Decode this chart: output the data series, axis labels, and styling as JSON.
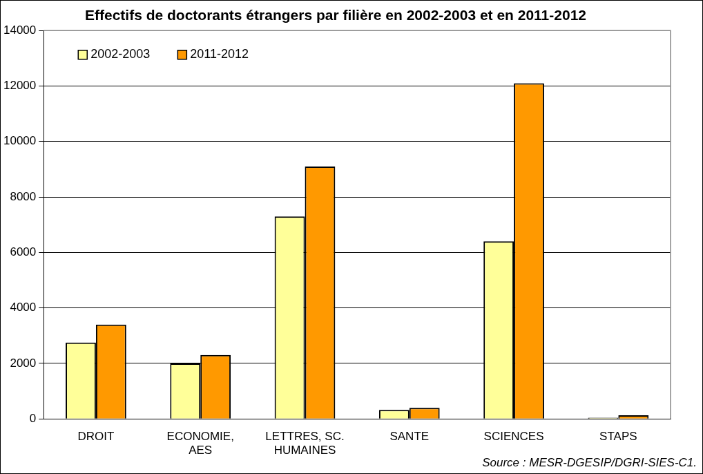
{
  "chart_data": {
    "type": "bar",
    "title": "Effectifs de doctorants étrangers par filière en 2002-2003 et en 2011-2012",
    "categories": [
      "DROIT",
      "ECONOMIE, AES",
      "LETTRES, SC. HUMAINES",
      "SANTE",
      "SCIENCES",
      "STAPS"
    ],
    "series": [
      {
        "name": "2002-2003",
        "color": "#ffff99",
        "values": [
          2750,
          2000,
          7300,
          320,
          6400,
          40
        ]
      },
      {
        "name": "2011-2012",
        "color": "#ff9900",
        "values": [
          3400,
          2300,
          9100,
          400,
          12100,
          130
        ]
      }
    ],
    "ylim": [
      0,
      14000
    ],
    "yticks": [
      0,
      2000,
      4000,
      6000,
      8000,
      10000,
      12000,
      14000
    ],
    "grid": "y",
    "legend": "top left",
    "annotations": [
      "Source : MESR-DGESIP/DGRI-SIES-C1."
    ]
  }
}
